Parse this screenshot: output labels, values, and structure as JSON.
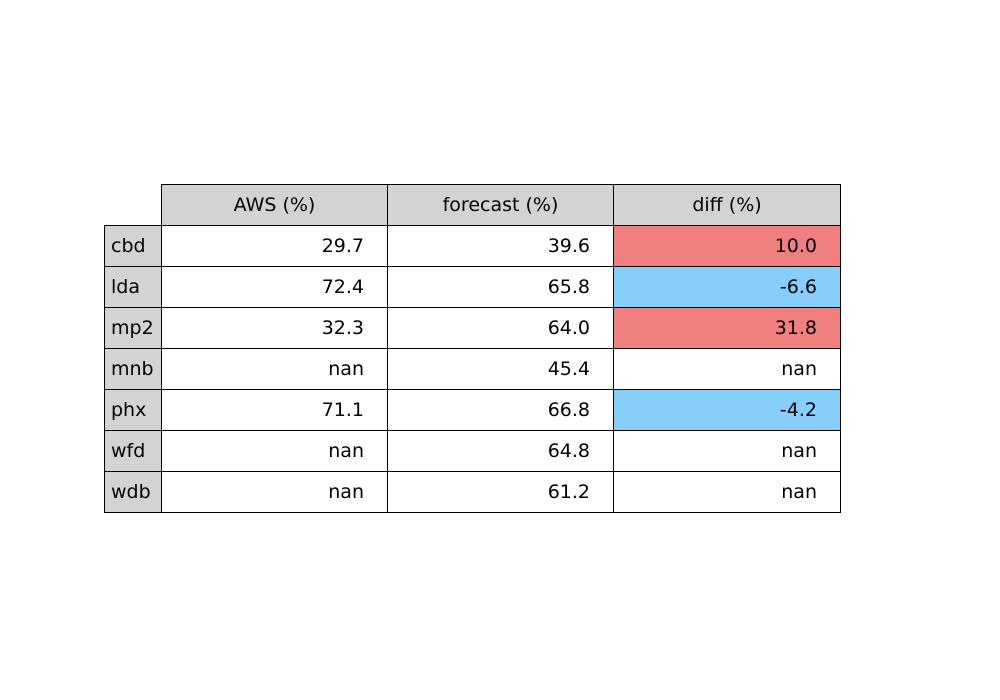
{
  "chart_data": {
    "type": "table",
    "columns": [
      "AWS (%)",
      "forecast (%)",
      "diff (%)"
    ],
    "rows": [
      {
        "label": "cbd",
        "values": [
          "29.7",
          "39.6",
          "10.0"
        ],
        "diff_status": "positive"
      },
      {
        "label": "lda",
        "values": [
          "72.4",
          "65.8",
          "-6.6"
        ],
        "diff_status": "negative"
      },
      {
        "label": "mp2",
        "values": [
          "32.3",
          "64.0",
          "31.8"
        ],
        "diff_status": "positive"
      },
      {
        "label": "mnb",
        "values": [
          "nan",
          "45.4",
          "nan"
        ],
        "diff_status": "none"
      },
      {
        "label": "phx",
        "values": [
          "71.1",
          "66.8",
          "-4.2"
        ],
        "diff_status": "negative"
      },
      {
        "label": "wfd",
        "values": [
          "nan",
          "64.8",
          "nan"
        ],
        "diff_status": "none"
      },
      {
        "label": "wdb",
        "values": [
          "nan",
          "61.2",
          "nan"
        ],
        "diff_status": "none"
      }
    ],
    "colors": {
      "header_bg": "#d3d3d3",
      "positive_diff": "#f08080",
      "negative_diff": "#87cefa",
      "cell_bg": "#ffffff"
    }
  }
}
